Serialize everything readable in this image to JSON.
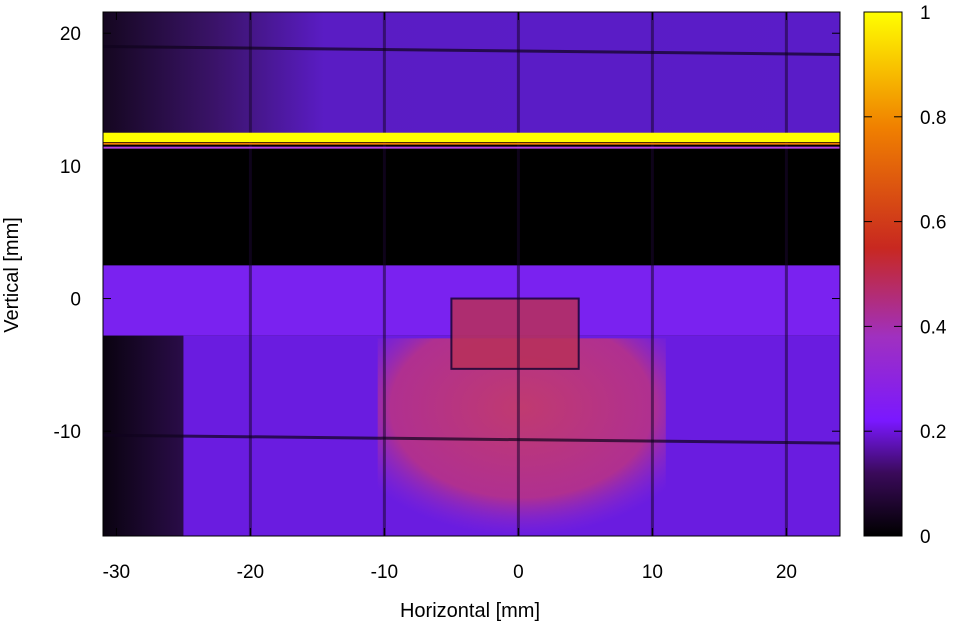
{
  "chart_data": {
    "type": "heatmap",
    "title": "",
    "xlabel": "Horizontal [mm]",
    "ylabel": "Vertical [mm]",
    "xlim": [
      -31.0,
      24.0
    ],
    "ylim": [
      -17.9,
      21.6
    ],
    "x_ticks": [
      -30,
      -20,
      -10,
      0,
      10,
      20
    ],
    "y_ticks": [
      -10,
      0,
      10,
      20
    ],
    "colorbar": {
      "range": [
        0,
        1
      ],
      "ticks": [
        0,
        0.2,
        0.4,
        0.6,
        0.8,
        1
      ],
      "tick_labels": [
        "0",
        "0.2",
        "0.4",
        "0.6",
        "0.8",
        "1"
      ],
      "colormap": [
        "#000000",
        "#3a0a5a",
        "#7a18ff",
        "#a030c0",
        "#c82820",
        "#f08000",
        "#ffff00"
      ]
    },
    "regions": [
      {
        "name": "upper-band",
        "x": [
          -31.0,
          24.0
        ],
        "y": [
          12.3,
          21.6
        ],
        "intensity": 0.16
      },
      {
        "name": "bright-stripe",
        "x": [
          -31.0,
          24.0
        ],
        "y": [
          11.8,
          12.5
        ],
        "intensity": 1.0
      },
      {
        "name": "dark-gap",
        "x": [
          -31.0,
          24.0
        ],
        "y": [
          2.5,
          11.3
        ],
        "intensity": 0.0
      },
      {
        "name": "middle-band",
        "x": [
          -31.0,
          24.0
        ],
        "y": [
          -2.8,
          2.5
        ],
        "intensity": 0.27
      },
      {
        "name": "lower-region",
        "x": [
          -25.0,
          24.0
        ],
        "y": [
          -17.9,
          -2.8
        ],
        "intensity": 0.25
      },
      {
        "name": "central-hotspot",
        "x": [
          -10.5,
          11.0
        ],
        "y": [
          -17.9,
          -3.0
        ],
        "intensity": 0.44
      },
      {
        "name": "inner-box",
        "x": [
          -5.0,
          4.5
        ],
        "y": [
          -5.3,
          0.0
        ],
        "intensity": 0.5
      }
    ],
    "grid_lines_x_mm": [
      -20,
      -10,
      0,
      10,
      20
    ],
    "grid_lines_y_mm": [
      19.0,
      -10.3
    ]
  }
}
